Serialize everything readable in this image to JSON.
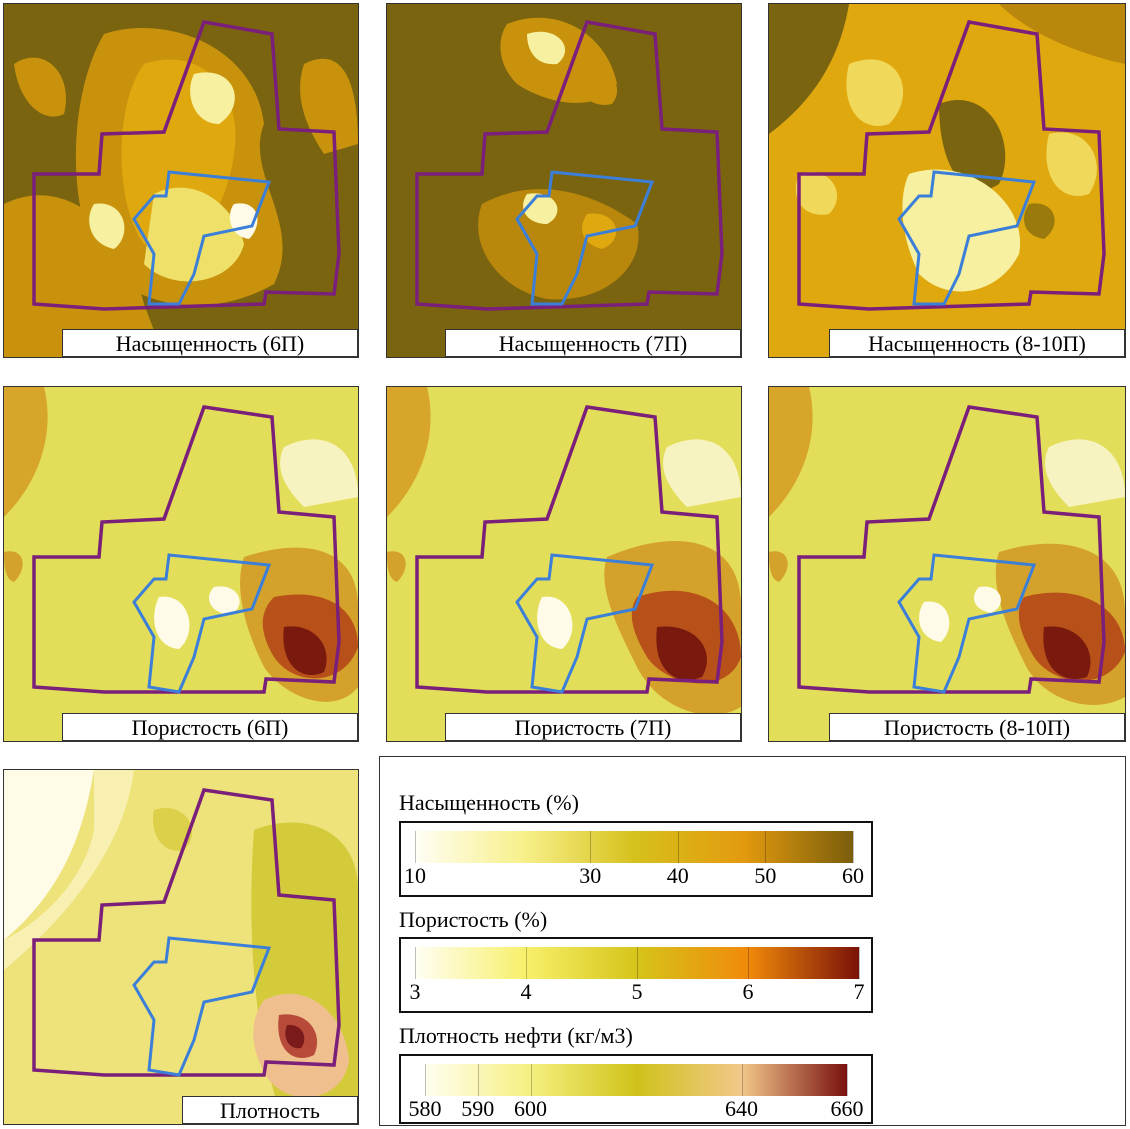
{
  "panels": {
    "sat6": {
      "caption": "Насыщенность (6П)"
    },
    "sat7": {
      "caption": "Насыщенность (7П)"
    },
    "sat810": {
      "caption": "Насыщенность (8-10П)"
    },
    "por6": {
      "caption": "Пористость (6П)"
    },
    "por7": {
      "caption": "Пористость (7П)"
    },
    "por810": {
      "caption": "Пористость (8-10П)"
    },
    "dens": {
      "caption": "Плотность"
    }
  },
  "legend": {
    "saturation": {
      "title": "Насыщенность (%)",
      "min": 10,
      "max": 60,
      "ticks": [
        "10",
        "30",
        "40",
        "50",
        "60"
      ],
      "tick_values": [
        10,
        30,
        40,
        50,
        60
      ],
      "colors": [
        "#fffef5",
        "#f7f08a",
        "#d6c11c",
        "#e39a0e",
        "#7a5e0c"
      ]
    },
    "porosity": {
      "title": "Пористость (%)",
      "min": 3,
      "max": 7,
      "ticks": [
        "3",
        "4",
        "5",
        "6",
        "7"
      ],
      "tick_values": [
        3,
        4,
        5,
        6,
        7
      ],
      "colors": [
        "#fffef5",
        "#f7f06a",
        "#d6c41a",
        "#f08a0a",
        "#7a1208"
      ]
    },
    "density": {
      "title": "Плотность нефти (кг/м3)",
      "min": 580,
      "max": 660,
      "ticks": [
        "580",
        "590",
        "600",
        "640",
        "660"
      ],
      "tick_values": [
        580,
        590,
        600,
        640,
        660
      ],
      "colors": [
        "#fffef0",
        "#f5f080",
        "#cfc21a",
        "#f2c88a",
        "#7a1010"
      ]
    }
  },
  "colors": {
    "license_boundary": "#7a1f7a",
    "deposit_boundary": "#3b7fd9"
  }
}
